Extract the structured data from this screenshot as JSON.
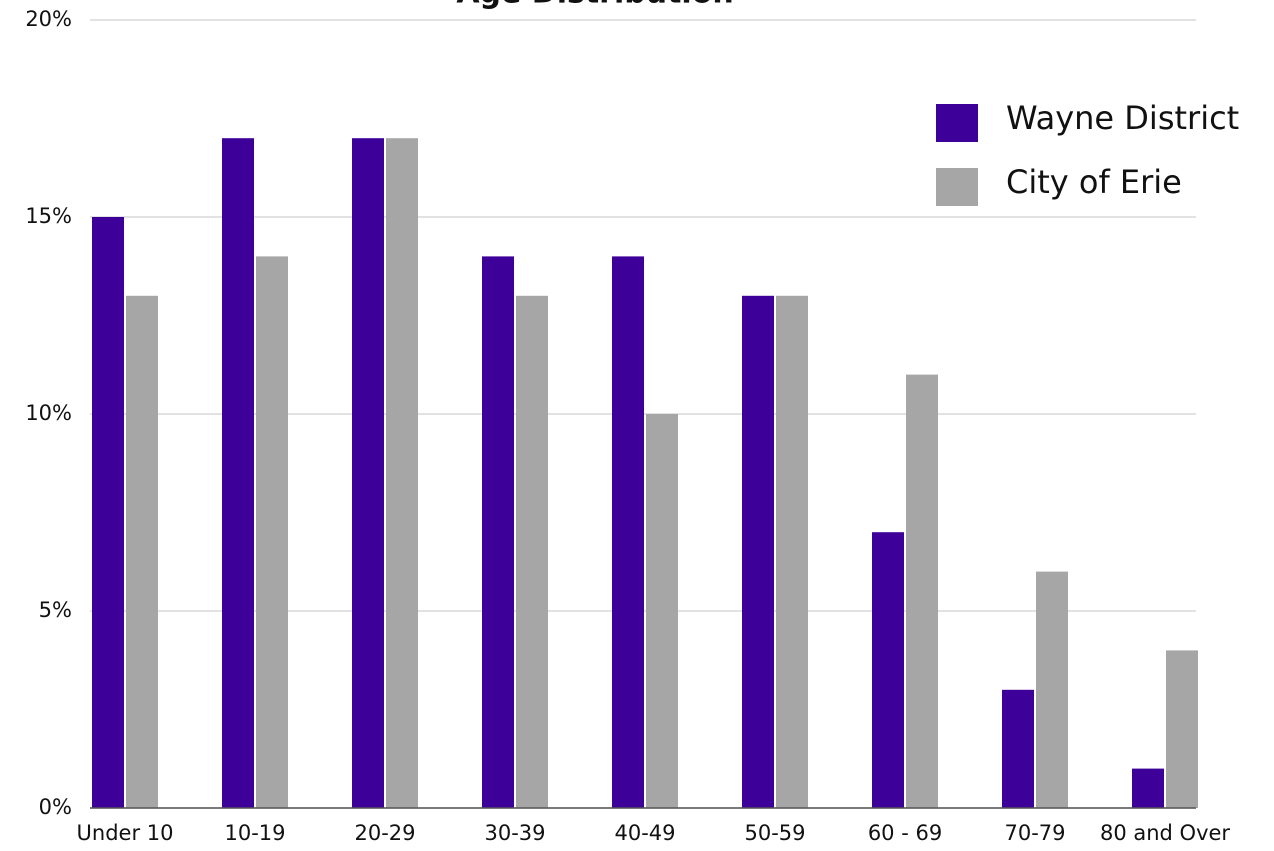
{
  "chart_data": {
    "type": "bar",
    "title": "Age Distribution",
    "categories": [
      "Under 10",
      "10-19",
      "20-29",
      "30-39",
      "40-49",
      "50-59",
      "60 - 69",
      "70-79",
      "80 and Over"
    ],
    "series": [
      {
        "name": "Wayne District",
        "color": "#3d0099",
        "values": [
          15,
          17,
          17,
          14,
          14,
          13,
          7,
          3,
          1
        ]
      },
      {
        "name": "City of Erie",
        "color": "#a6a6a6",
        "values": [
          13,
          14,
          17,
          13,
          10,
          13,
          11,
          6,
          4
        ]
      }
    ],
    "ylim": [
      0,
      20
    ],
    "yticks": [
      {
        "value": 0,
        "label": "0%"
      },
      {
        "value": 5,
        "label": "5%"
      },
      {
        "value": 10,
        "label": "10%"
      },
      {
        "value": 15,
        "label": "15%"
      },
      {
        "value": 20,
        "label": "20%"
      }
    ],
    "grid": true,
    "legend": "upper right"
  }
}
